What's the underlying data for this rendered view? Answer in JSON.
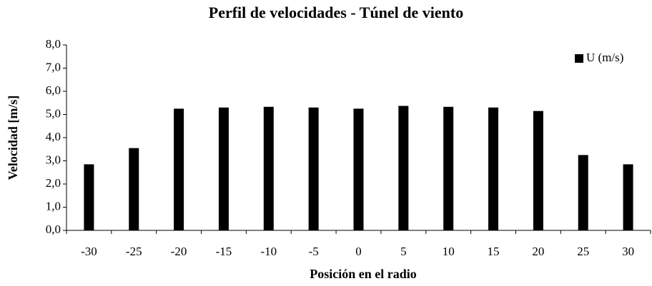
{
  "chart_data": {
    "type": "bar",
    "title": "Perfil de velocidades - Túnel de viento",
    "x_label": "Posición en el radio",
    "y_label": "Velocidad [m/s]",
    "categories": [
      "-30",
      "-25",
      "-20",
      "-15",
      "-10",
      "-5",
      "0",
      "5",
      "10",
      "15",
      "20",
      "25",
      "30"
    ],
    "series": [
      {
        "name": "U (m/s)",
        "color": "#000000",
        "values": [
          2.85,
          3.55,
          5.25,
          5.3,
          5.33,
          5.3,
          5.25,
          5.37,
          5.33,
          5.3,
          5.15,
          3.25,
          2.85
        ]
      }
    ],
    "ylim": [
      0,
      8
    ],
    "yticks": [
      {
        "value": 0,
        "label": "0,0"
      },
      {
        "value": 1,
        "label": "1,0"
      },
      {
        "value": 2,
        "label": "2,0"
      },
      {
        "value": 3,
        "label": "3,0"
      },
      {
        "value": 4,
        "label": "4,0"
      },
      {
        "value": 5,
        "label": "5,0"
      },
      {
        "value": 6,
        "label": "6,0"
      },
      {
        "value": 7,
        "label": "7,0"
      },
      {
        "value": 8,
        "label": "8,0"
      }
    ],
    "grid": false,
    "legend": "top-right"
  }
}
